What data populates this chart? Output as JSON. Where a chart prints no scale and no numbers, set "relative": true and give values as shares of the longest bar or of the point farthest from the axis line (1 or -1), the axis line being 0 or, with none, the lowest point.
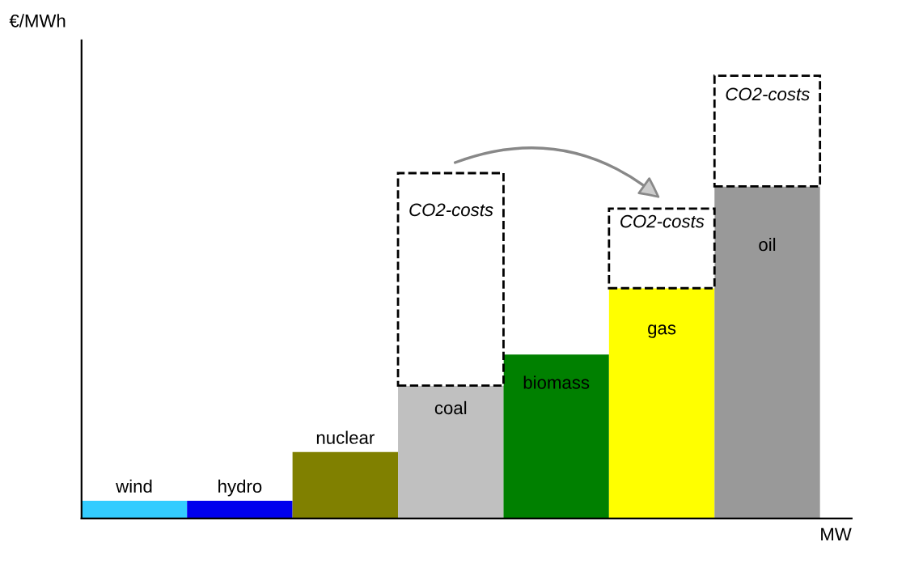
{
  "chart_data": {
    "type": "bar",
    "stacked": true,
    "relative": true,
    "legend": false,
    "xlabel": "MW",
    "ylabel": "€/MWh",
    "categories": [
      "wind",
      "hydro",
      "nuclear",
      "coal",
      "biomass",
      "gas",
      "oil"
    ],
    "series": [
      {
        "colors": [
          "#33ccff",
          "#0000ee",
          "#808000",
          "#c0c0c0",
          "#008000",
          "#ffff00",
          "#999999"
        ],
        "values": [
          0.04,
          0.04,
          0.15,
          0.3,
          0.37,
          0.52,
          0.75
        ]
      },
      {
        "name": "CO2-costs",
        "color": "#ffffff",
        "line_style": "dashed",
        "values": [
          null,
          null,
          null,
          0.48,
          null,
          0.18,
          0.25
        ]
      }
    ]
  }
}
